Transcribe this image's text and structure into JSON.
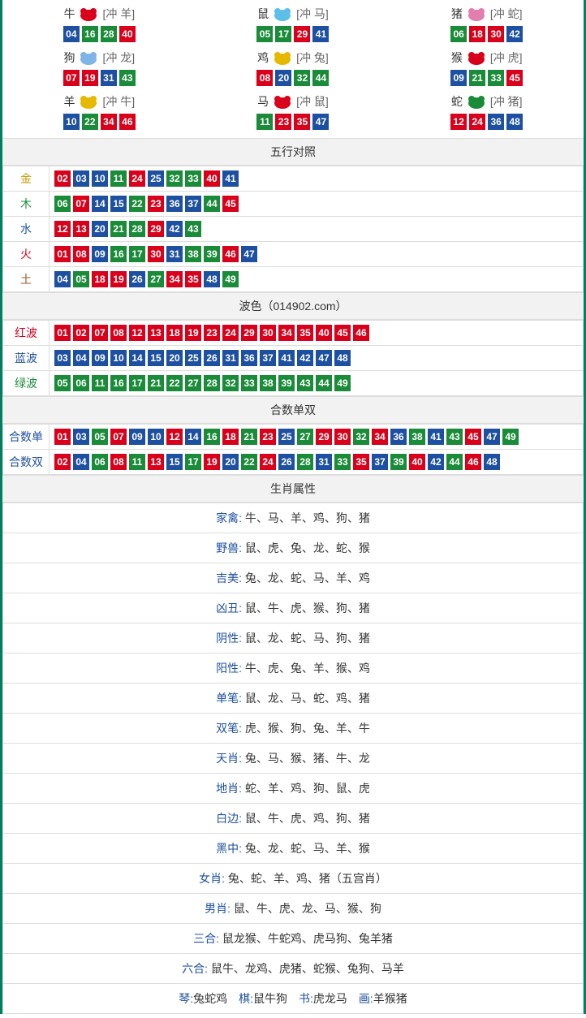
{
  "colors": {
    "border": "#008060",
    "red": "#d9001b",
    "blue": "#1e50a2",
    "green": "#1a8b38",
    "header_bg": "#f2f2f2",
    "cell_border": "#dddddd",
    "text": "#333333",
    "muted": "#666666"
  },
  "zodiac": [
    {
      "name": "牛",
      "conflict": "[冲 羊]",
      "icon_color": "#d9001b",
      "nums": [
        {
          "n": "04",
          "c": "blue"
        },
        {
          "n": "16",
          "c": "green"
        },
        {
          "n": "28",
          "c": "green"
        },
        {
          "n": "40",
          "c": "red"
        }
      ]
    },
    {
      "name": "鼠",
      "conflict": "[冲 马]",
      "icon_color": "#5bbfe8",
      "nums": [
        {
          "n": "05",
          "c": "green"
        },
        {
          "n": "17",
          "c": "green"
        },
        {
          "n": "29",
          "c": "red"
        },
        {
          "n": "41",
          "c": "blue"
        }
      ]
    },
    {
      "name": "猪",
      "conflict": "[冲 蛇]",
      "icon_color": "#e27fae",
      "nums": [
        {
          "n": "06",
          "c": "green"
        },
        {
          "n": "18",
          "c": "red"
        },
        {
          "n": "30",
          "c": "red"
        },
        {
          "n": "42",
          "c": "blue"
        }
      ]
    },
    {
      "name": "狗",
      "conflict": "[冲 龙]",
      "icon_color": "#7fb4e6",
      "nums": [
        {
          "n": "07",
          "c": "red"
        },
        {
          "n": "19",
          "c": "red"
        },
        {
          "n": "31",
          "c": "blue"
        },
        {
          "n": "43",
          "c": "green"
        }
      ]
    },
    {
      "name": "鸡",
      "conflict": "[冲 兔]",
      "icon_color": "#e6b800",
      "nums": [
        {
          "n": "08",
          "c": "red"
        },
        {
          "n": "20",
          "c": "blue"
        },
        {
          "n": "32",
          "c": "green"
        },
        {
          "n": "44",
          "c": "green"
        }
      ]
    },
    {
      "name": "猴",
      "conflict": "[冲 虎]",
      "icon_color": "#d9001b",
      "nums": [
        {
          "n": "09",
          "c": "blue"
        },
        {
          "n": "21",
          "c": "green"
        },
        {
          "n": "33",
          "c": "green"
        },
        {
          "n": "45",
          "c": "red"
        }
      ]
    },
    {
      "name": "羊",
      "conflict": "[冲 牛]",
      "icon_color": "#e6b800",
      "nums": [
        {
          "n": "10",
          "c": "blue"
        },
        {
          "n": "22",
          "c": "green"
        },
        {
          "n": "34",
          "c": "red"
        },
        {
          "n": "46",
          "c": "red"
        }
      ]
    },
    {
      "name": "马",
      "conflict": "[冲 鼠]",
      "icon_color": "#d9001b",
      "nums": [
        {
          "n": "11",
          "c": "green"
        },
        {
          "n": "23",
          "c": "red"
        },
        {
          "n": "35",
          "c": "red"
        },
        {
          "n": "47",
          "c": "blue"
        }
      ]
    },
    {
      "name": "蛇",
      "conflict": "[冲 猪]",
      "icon_color": "#1a8b38",
      "nums": [
        {
          "n": "12",
          "c": "red"
        },
        {
          "n": "24",
          "c": "red"
        },
        {
          "n": "36",
          "c": "blue"
        },
        {
          "n": "48",
          "c": "blue"
        }
      ]
    }
  ],
  "wuxing": {
    "title": "五行对照",
    "rows": [
      {
        "label": "金",
        "class": "elem-gold",
        "nums": [
          {
            "n": "02",
            "c": "red"
          },
          {
            "n": "03",
            "c": "blue"
          },
          {
            "n": "10",
            "c": "blue"
          },
          {
            "n": "11",
            "c": "green"
          },
          {
            "n": "24",
            "c": "red"
          },
          {
            "n": "25",
            "c": "blue"
          },
          {
            "n": "32",
            "c": "green"
          },
          {
            "n": "33",
            "c": "green"
          },
          {
            "n": "40",
            "c": "red"
          },
          {
            "n": "41",
            "c": "blue"
          }
        ]
      },
      {
        "label": "木",
        "class": "elem-wood",
        "nums": [
          {
            "n": "06",
            "c": "green"
          },
          {
            "n": "07",
            "c": "red"
          },
          {
            "n": "14",
            "c": "blue"
          },
          {
            "n": "15",
            "c": "blue"
          },
          {
            "n": "22",
            "c": "green"
          },
          {
            "n": "23",
            "c": "red"
          },
          {
            "n": "36",
            "c": "blue"
          },
          {
            "n": "37",
            "c": "blue"
          },
          {
            "n": "44",
            "c": "green"
          },
          {
            "n": "45",
            "c": "red"
          }
        ]
      },
      {
        "label": "水",
        "class": "elem-water",
        "nums": [
          {
            "n": "12",
            "c": "red"
          },
          {
            "n": "13",
            "c": "red"
          },
          {
            "n": "20",
            "c": "blue"
          },
          {
            "n": "21",
            "c": "green"
          },
          {
            "n": "28",
            "c": "green"
          },
          {
            "n": "29",
            "c": "red"
          },
          {
            "n": "42",
            "c": "blue"
          },
          {
            "n": "43",
            "c": "green"
          }
        ]
      },
      {
        "label": "火",
        "class": "elem-fire",
        "nums": [
          {
            "n": "01",
            "c": "red"
          },
          {
            "n": "08",
            "c": "red"
          },
          {
            "n": "09",
            "c": "blue"
          },
          {
            "n": "16",
            "c": "green"
          },
          {
            "n": "17",
            "c": "green"
          },
          {
            "n": "30",
            "c": "red"
          },
          {
            "n": "31",
            "c": "blue"
          },
          {
            "n": "38",
            "c": "green"
          },
          {
            "n": "39",
            "c": "green"
          },
          {
            "n": "46",
            "c": "red"
          },
          {
            "n": "47",
            "c": "blue"
          }
        ]
      },
      {
        "label": "土",
        "class": "elem-earth",
        "nums": [
          {
            "n": "04",
            "c": "blue"
          },
          {
            "n": "05",
            "c": "green"
          },
          {
            "n": "18",
            "c": "red"
          },
          {
            "n": "19",
            "c": "red"
          },
          {
            "n": "26",
            "c": "blue"
          },
          {
            "n": "27",
            "c": "green"
          },
          {
            "n": "34",
            "c": "red"
          },
          {
            "n": "35",
            "c": "red"
          },
          {
            "n": "48",
            "c": "blue"
          },
          {
            "n": "49",
            "c": "green"
          }
        ]
      }
    ]
  },
  "wave": {
    "title": "波色（014902.com）",
    "rows": [
      {
        "label": "红波",
        "class": "wave-red",
        "nums": [
          {
            "n": "01",
            "c": "red"
          },
          {
            "n": "02",
            "c": "red"
          },
          {
            "n": "07",
            "c": "red"
          },
          {
            "n": "08",
            "c": "red"
          },
          {
            "n": "12",
            "c": "red"
          },
          {
            "n": "13",
            "c": "red"
          },
          {
            "n": "18",
            "c": "red"
          },
          {
            "n": "19",
            "c": "red"
          },
          {
            "n": "23",
            "c": "red"
          },
          {
            "n": "24",
            "c": "red"
          },
          {
            "n": "29",
            "c": "red"
          },
          {
            "n": "30",
            "c": "red"
          },
          {
            "n": "34",
            "c": "red"
          },
          {
            "n": "35",
            "c": "red"
          },
          {
            "n": "40",
            "c": "red"
          },
          {
            "n": "45",
            "c": "red"
          },
          {
            "n": "46",
            "c": "red"
          }
        ]
      },
      {
        "label": "蓝波",
        "class": "wave-blue",
        "nums": [
          {
            "n": "03",
            "c": "blue"
          },
          {
            "n": "04",
            "c": "blue"
          },
          {
            "n": "09",
            "c": "blue"
          },
          {
            "n": "10",
            "c": "blue"
          },
          {
            "n": "14",
            "c": "blue"
          },
          {
            "n": "15",
            "c": "blue"
          },
          {
            "n": "20",
            "c": "blue"
          },
          {
            "n": "25",
            "c": "blue"
          },
          {
            "n": "26",
            "c": "blue"
          },
          {
            "n": "31",
            "c": "blue"
          },
          {
            "n": "36",
            "c": "blue"
          },
          {
            "n": "37",
            "c": "blue"
          },
          {
            "n": "41",
            "c": "blue"
          },
          {
            "n": "42",
            "c": "blue"
          },
          {
            "n": "47",
            "c": "blue"
          },
          {
            "n": "48",
            "c": "blue"
          }
        ]
      },
      {
        "label": "绿波",
        "class": "wave-green",
        "nums": [
          {
            "n": "05",
            "c": "green"
          },
          {
            "n": "06",
            "c": "green"
          },
          {
            "n": "11",
            "c": "green"
          },
          {
            "n": "16",
            "c": "green"
          },
          {
            "n": "17",
            "c": "green"
          },
          {
            "n": "21",
            "c": "green"
          },
          {
            "n": "22",
            "c": "green"
          },
          {
            "n": "27",
            "c": "green"
          },
          {
            "n": "28",
            "c": "green"
          },
          {
            "n": "32",
            "c": "green"
          },
          {
            "n": "33",
            "c": "green"
          },
          {
            "n": "38",
            "c": "green"
          },
          {
            "n": "39",
            "c": "green"
          },
          {
            "n": "43",
            "c": "green"
          },
          {
            "n": "44",
            "c": "green"
          },
          {
            "n": "49",
            "c": "green"
          }
        ]
      }
    ]
  },
  "heshu": {
    "title": "合数单双",
    "rows": [
      {
        "label": "合数单",
        "class": "wave-blue",
        "nums": [
          {
            "n": "01",
            "c": "red"
          },
          {
            "n": "03",
            "c": "blue"
          },
          {
            "n": "05",
            "c": "green"
          },
          {
            "n": "07",
            "c": "red"
          },
          {
            "n": "09",
            "c": "blue"
          },
          {
            "n": "10",
            "c": "blue"
          },
          {
            "n": "12",
            "c": "red"
          },
          {
            "n": "14",
            "c": "blue"
          },
          {
            "n": "16",
            "c": "green"
          },
          {
            "n": "18",
            "c": "red"
          },
          {
            "n": "21",
            "c": "green"
          },
          {
            "n": "23",
            "c": "red"
          },
          {
            "n": "25",
            "c": "blue"
          },
          {
            "n": "27",
            "c": "green"
          },
          {
            "n": "29",
            "c": "red"
          },
          {
            "n": "30",
            "c": "red"
          },
          {
            "n": "32",
            "c": "green"
          },
          {
            "n": "34",
            "c": "red"
          },
          {
            "n": "36",
            "c": "blue"
          },
          {
            "n": "38",
            "c": "green"
          },
          {
            "n": "41",
            "c": "blue"
          },
          {
            "n": "43",
            "c": "green"
          },
          {
            "n": "45",
            "c": "red"
          },
          {
            "n": "47",
            "c": "blue"
          },
          {
            "n": "49",
            "c": "green"
          }
        ]
      },
      {
        "label": "合数双",
        "class": "wave-blue",
        "nums": [
          {
            "n": "02",
            "c": "red"
          },
          {
            "n": "04",
            "c": "blue"
          },
          {
            "n": "06",
            "c": "green"
          },
          {
            "n": "08",
            "c": "red"
          },
          {
            "n": "11",
            "c": "green"
          },
          {
            "n": "13",
            "c": "red"
          },
          {
            "n": "15",
            "c": "blue"
          },
          {
            "n": "17",
            "c": "green"
          },
          {
            "n": "19",
            "c": "red"
          },
          {
            "n": "20",
            "c": "blue"
          },
          {
            "n": "22",
            "c": "green"
          },
          {
            "n": "24",
            "c": "red"
          },
          {
            "n": "26",
            "c": "blue"
          },
          {
            "n": "28",
            "c": "green"
          },
          {
            "n": "31",
            "c": "blue"
          },
          {
            "n": "33",
            "c": "green"
          },
          {
            "n": "35",
            "c": "red"
          },
          {
            "n": "37",
            "c": "blue"
          },
          {
            "n": "39",
            "c": "green"
          },
          {
            "n": "40",
            "c": "red"
          },
          {
            "n": "42",
            "c": "blue"
          },
          {
            "n": "44",
            "c": "green"
          },
          {
            "n": "46",
            "c": "red"
          },
          {
            "n": "48",
            "c": "blue"
          }
        ]
      }
    ]
  },
  "attributes": {
    "title": "生肖属性",
    "rows": [
      {
        "label": "家禽:",
        "text": "牛、马、羊、鸡、狗、猪"
      },
      {
        "label": "野兽:",
        "text": "鼠、虎、兔、龙、蛇、猴"
      },
      {
        "label": "吉美:",
        "text": "兔、龙、蛇、马、羊、鸡"
      },
      {
        "label": "凶丑:",
        "text": "鼠、牛、虎、猴、狗、猪"
      },
      {
        "label": "阴性:",
        "text": "鼠、龙、蛇、马、狗、猪"
      },
      {
        "label": "阳性:",
        "text": "牛、虎、兔、羊、猴、鸡"
      },
      {
        "label": "单笔:",
        "text": "鼠、龙、马、蛇、鸡、猪"
      },
      {
        "label": "双笔:",
        "text": "虎、猴、狗、兔、羊、牛"
      },
      {
        "label": "天肖:",
        "text": "兔、马、猴、猪、牛、龙"
      },
      {
        "label": "地肖:",
        "text": "蛇、羊、鸡、狗、鼠、虎"
      },
      {
        "label": "白边:",
        "text": "鼠、牛、虎、鸡、狗、猪"
      },
      {
        "label": "黑中:",
        "text": "兔、龙、蛇、马、羊、猴"
      },
      {
        "label": "女肖:",
        "text": "兔、蛇、羊、鸡、猪（五宫肖）"
      },
      {
        "label": "男肖:",
        "text": "鼠、牛、虎、龙、马、猴、狗"
      },
      {
        "label": "三合:",
        "text": "鼠龙猴、牛蛇鸡、虎马狗、兔羊猪"
      },
      {
        "label": "六合:",
        "text": "鼠牛、龙鸡、虎猪、蛇猴、兔狗、马羊"
      }
    ],
    "footer": [
      {
        "label": "琴:",
        "text": "兔蛇鸡"
      },
      {
        "label": "棋:",
        "text": "鼠牛狗"
      },
      {
        "label": "书:",
        "text": "虎龙马"
      },
      {
        "label": "画:",
        "text": "羊猴猪"
      }
    ]
  }
}
